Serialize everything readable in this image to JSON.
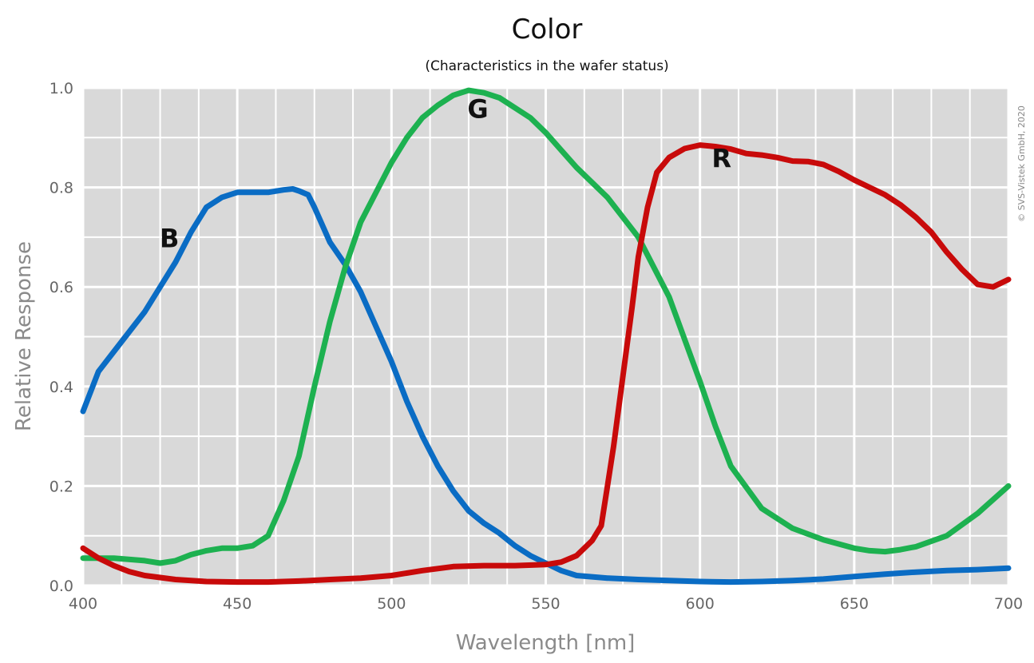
{
  "chart_data": {
    "type": "line",
    "title": "Color",
    "subtitle": "(Characteristics in the wafer status)",
    "xlabel": "Wavelength [nm]",
    "ylabel": "Relative Response",
    "xlim": [
      400,
      700
    ],
    "ylim": [
      0,
      1.0
    ],
    "xticks": [
      400,
      450,
      500,
      550,
      600,
      650,
      700
    ],
    "xtick_labels": [
      "400",
      "450",
      "500",
      "550",
      "600",
      "650",
      "700"
    ],
    "yticks": [
      0,
      0.2,
      0.4,
      0.6,
      0.8,
      1.0
    ],
    "ytick_labels": [
      "0.0",
      "0.2",
      "0.4",
      "0.6",
      "0.8",
      "1.0"
    ],
    "grid": true,
    "copyright": "© SVS-Vistek GmbH, 2020",
    "series": [
      {
        "name": "B",
        "color": "#0a6cc4",
        "label_at": [
          428,
          0.68
        ],
        "x": [
          400,
          405,
          410,
          415,
          420,
          425,
          430,
          435,
          440,
          445,
          450,
          455,
          460,
          465,
          468,
          470,
          473,
          475,
          480,
          485,
          490,
          495,
          500,
          505,
          510,
          515,
          520,
          525,
          530,
          535,
          540,
          545,
          550,
          555,
          560,
          570,
          580,
          590,
          600,
          610,
          620,
          630,
          640,
          650,
          660,
          670,
          680,
          690,
          700
        ],
        "values": [
          0.35,
          0.43,
          0.47,
          0.51,
          0.55,
          0.6,
          0.65,
          0.71,
          0.76,
          0.78,
          0.79,
          0.79,
          0.79,
          0.795,
          0.797,
          0.793,
          0.785,
          0.76,
          0.69,
          0.645,
          0.59,
          0.52,
          0.45,
          0.37,
          0.3,
          0.24,
          0.19,
          0.15,
          0.125,
          0.105,
          0.08,
          0.06,
          0.045,
          0.03,
          0.02,
          0.015,
          0.012,
          0.01,
          0.008,
          0.007,
          0.008,
          0.01,
          0.013,
          0.018,
          0.023,
          0.027,
          0.03,
          0.032,
          0.035
        ]
      },
      {
        "name": "G",
        "color": "#1db150",
        "label_at": [
          528,
          0.94
        ],
        "x": [
          400,
          410,
          420,
          425,
          430,
          435,
          440,
          445,
          450,
          455,
          460,
          465,
          470,
          475,
          480,
          485,
          490,
          495,
          500,
          505,
          510,
          515,
          520,
          525,
          530,
          535,
          540,
          545,
          550,
          555,
          560,
          570,
          580,
          590,
          600,
          605,
          610,
          620,
          630,
          640,
          650,
          655,
          660,
          665,
          670,
          680,
          690,
          700
        ],
        "values": [
          0.055,
          0.055,
          0.05,
          0.045,
          0.05,
          0.062,
          0.07,
          0.075,
          0.075,
          0.08,
          0.1,
          0.17,
          0.26,
          0.4,
          0.53,
          0.64,
          0.73,
          0.79,
          0.85,
          0.9,
          0.94,
          0.965,
          0.985,
          0.995,
          0.99,
          0.98,
          0.96,
          0.94,
          0.91,
          0.875,
          0.84,
          0.78,
          0.7,
          0.58,
          0.41,
          0.32,
          0.24,
          0.155,
          0.115,
          0.092,
          0.075,
          0.07,
          0.068,
          0.072,
          0.078,
          0.1,
          0.145,
          0.2
        ]
      },
      {
        "name": "R",
        "color": "#c80a0a",
        "label_at": [
          607,
          0.84
        ],
        "x": [
          400,
          405,
          410,
          415,
          420,
          430,
          440,
          450,
          460,
          470,
          480,
          490,
          500,
          510,
          520,
          530,
          540,
          550,
          555,
          560,
          565,
          568,
          570,
          572,
          575,
          578,
          580,
          583,
          586,
          590,
          595,
          600,
          605,
          610,
          615,
          620,
          625,
          630,
          635,
          640,
          645,
          650,
          655,
          660,
          665,
          670,
          675,
          680,
          685,
          690,
          695,
          700
        ],
        "values": [
          0.075,
          0.055,
          0.04,
          0.028,
          0.02,
          0.012,
          0.008,
          0.007,
          0.007,
          0.009,
          0.012,
          0.015,
          0.02,
          0.03,
          0.038,
          0.04,
          0.04,
          0.042,
          0.047,
          0.06,
          0.09,
          0.12,
          0.2,
          0.28,
          0.42,
          0.56,
          0.66,
          0.76,
          0.83,
          0.86,
          0.878,
          0.885,
          0.882,
          0.877,
          0.868,
          0.865,
          0.86,
          0.853,
          0.852,
          0.846,
          0.832,
          0.815,
          0.8,
          0.785,
          0.765,
          0.74,
          0.71,
          0.67,
          0.635,
          0.605,
          0.6,
          0.615
        ]
      }
    ]
  }
}
